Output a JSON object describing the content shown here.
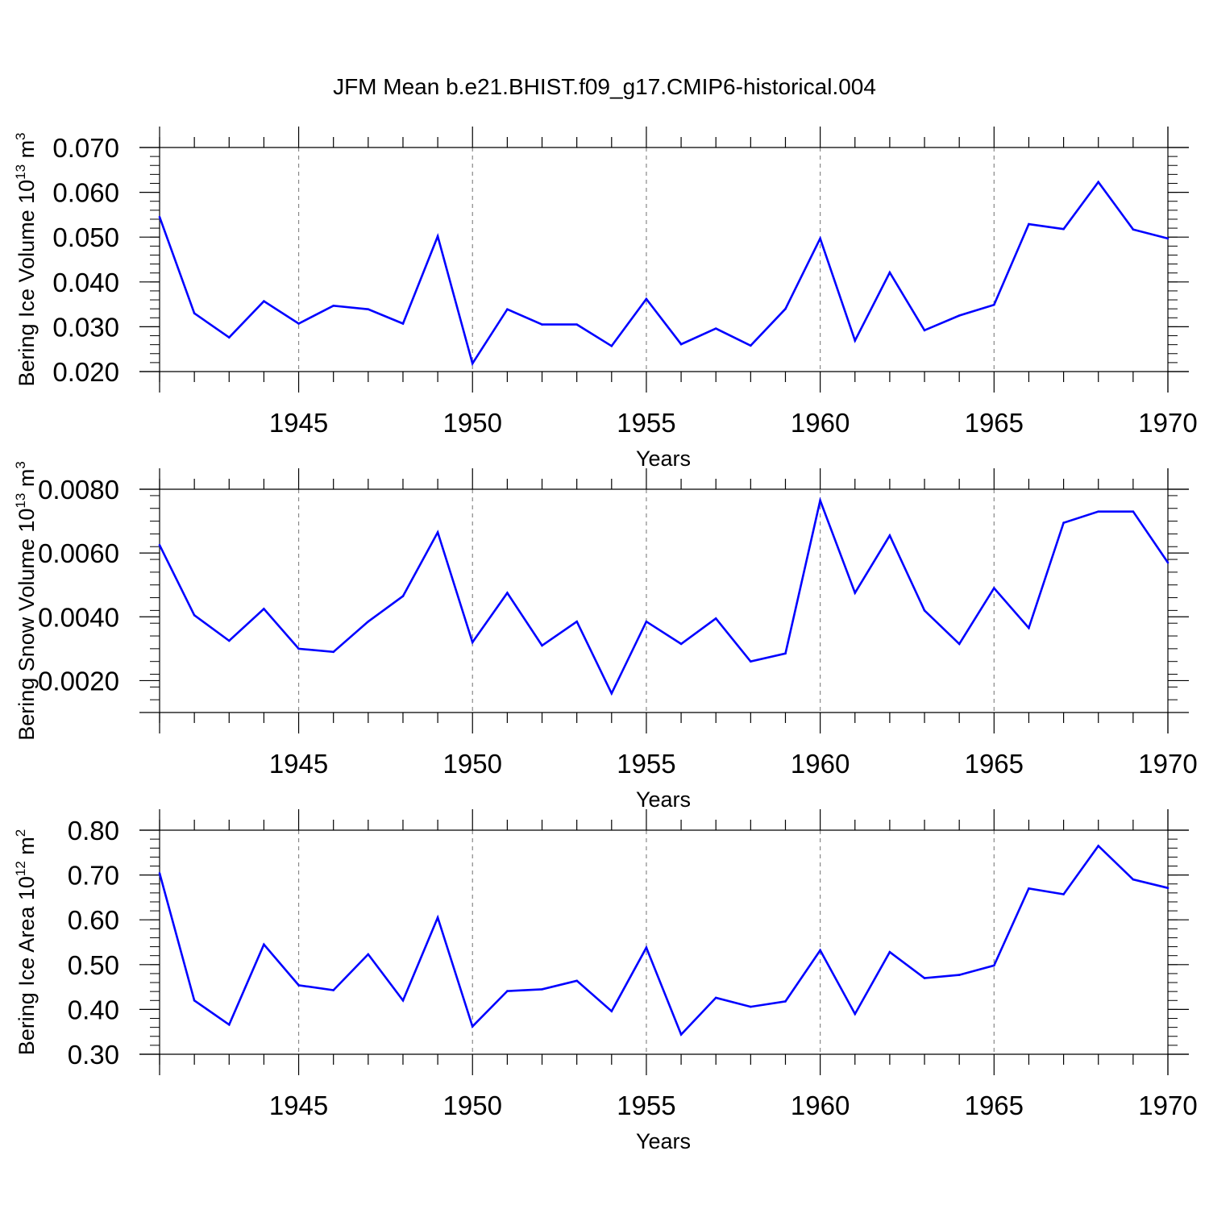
{
  "title": "JFM Mean b.e21.BHIST.f09_g17.CMIP6-historical.004",
  "line_color": "#0000ff",
  "chart_data": [
    {
      "type": "line",
      "ylabel": {
        "text": "Bering Ice Volume 10",
        "exp": "13",
        "unit": " m",
        "unit_exp": "3"
      },
      "xlabel": "Years",
      "xlim": [
        1941,
        1970
      ],
      "ylim": [
        0.02,
        0.07
      ],
      "yticks": [
        0.02,
        0.03,
        0.04,
        0.05,
        0.06,
        0.07
      ],
      "ytick_labels": [
        "0.020",
        "0.030",
        "0.040",
        "0.050",
        "0.060",
        "0.070"
      ],
      "xticks": [
        1945,
        1950,
        1955,
        1960,
        1965,
        1970
      ],
      "xtick_labels": [
        "1945",
        "1950",
        "1955",
        "1960",
        "1965",
        "1970"
      ],
      "x": [
        1941,
        1942,
        1943,
        1944,
        1945,
        1946,
        1947,
        1948,
        1949,
        1950,
        1951,
        1952,
        1953,
        1954,
        1955,
        1956,
        1957,
        1958,
        1959,
        1960,
        1961,
        1962,
        1963,
        1964,
        1965,
        1966,
        1967,
        1968,
        1969,
        1970
      ],
      "series": [
        {
          "values": [
            0.0545,
            0.033,
            0.0276,
            0.0357,
            0.0307,
            0.0347,
            0.0339,
            0.0307,
            0.0502,
            0.0218,
            0.0339,
            0.0305,
            0.0305,
            0.0257,
            0.0362,
            0.0261,
            0.0296,
            0.0258,
            0.034,
            0.0497,
            0.0269,
            0.0421,
            0.0292,
            0.0325,
            0.0349,
            0.0529,
            0.0518,
            0.0623,
            0.0517,
            0.0497
          ]
        }
      ]
    },
    {
      "type": "line",
      "ylabel": {
        "text": "Bering Snow Volume 10",
        "exp": "13",
        "unit": " m",
        "unit_exp": "3"
      },
      "xlabel": "Years",
      "xlim": [
        1941,
        1970
      ],
      "ylim": [
        0.001,
        0.008
      ],
      "yticks": [
        0.002,
        0.004,
        0.006,
        0.008
      ],
      "ytick_labels": [
        "0.0020",
        "0.0040",
        "0.0060",
        "0.0080"
      ],
      "xticks": [
        1945,
        1950,
        1955,
        1960,
        1965,
        1970
      ],
      "xtick_labels": [
        "1945",
        "1950",
        "1955",
        "1960",
        "1965",
        "1970"
      ],
      "x": [
        1941,
        1942,
        1943,
        1944,
        1945,
        1946,
        1947,
        1948,
        1949,
        1950,
        1951,
        1952,
        1953,
        1954,
        1955,
        1956,
        1957,
        1958,
        1959,
        1960,
        1961,
        1962,
        1963,
        1964,
        1965,
        1966,
        1967,
        1968,
        1969,
        1970
      ],
      "series": [
        {
          "values": [
            0.00625,
            0.00405,
            0.00325,
            0.00425,
            0.003,
            0.0029,
            0.00385,
            0.00465,
            0.00665,
            0.0032,
            0.00475,
            0.0031,
            0.00385,
            0.0016,
            0.00385,
            0.00315,
            0.00395,
            0.0026,
            0.00285,
            0.00765,
            0.00475,
            0.00655,
            0.0042,
            0.00315,
            0.0049,
            0.00365,
            0.00695,
            0.0073,
            0.0073,
            0.0057
          ]
        }
      ]
    },
    {
      "type": "line",
      "ylabel": {
        "text": "Bering Ice Area 10",
        "exp": "12",
        "unit": " m",
        "unit_exp": "2"
      },
      "xlabel": "Years",
      "xlim": [
        1941,
        1970
      ],
      "ylim": [
        0.3,
        0.8
      ],
      "yticks": [
        0.3,
        0.4,
        0.5,
        0.6,
        0.7,
        0.8
      ],
      "ytick_labels": [
        "0.30",
        "0.40",
        "0.50",
        "0.60",
        "0.70",
        "0.80"
      ],
      "xticks": [
        1945,
        1950,
        1955,
        1960,
        1965,
        1970
      ],
      "xtick_labels": [
        "1945",
        "1950",
        "1955",
        "1960",
        "1965",
        "1970"
      ],
      "x": [
        1941,
        1942,
        1943,
        1944,
        1945,
        1946,
        1947,
        1948,
        1949,
        1950,
        1951,
        1952,
        1953,
        1954,
        1955,
        1956,
        1957,
        1958,
        1959,
        1960,
        1961,
        1962,
        1963,
        1964,
        1965,
        1966,
        1967,
        1968,
        1969,
        1970
      ],
      "series": [
        {
          "values": [
            0.704,
            0.42,
            0.366,
            0.545,
            0.454,
            0.443,
            0.523,
            0.42,
            0.605,
            0.362,
            0.441,
            0.445,
            0.464,
            0.396,
            0.538,
            0.344,
            0.426,
            0.406,
            0.418,
            0.532,
            0.39,
            0.528,
            0.47,
            0.477,
            0.498,
            0.67,
            0.657,
            0.765,
            0.69,
            0.671
          ]
        }
      ]
    }
  ]
}
